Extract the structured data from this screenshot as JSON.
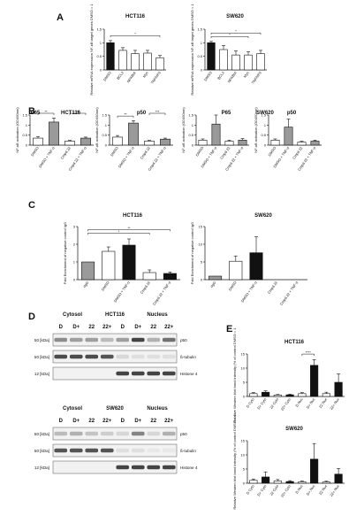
{
  "panel_labels": [
    "A",
    "B",
    "C",
    "D",
    "E"
  ],
  "colors": {
    "black": "#111111",
    "white": "#ffffff",
    "gray": "#9a9a9a",
    "band": "#3a3a3a"
  },
  "chart_data": [
    {
      "id": "A1",
      "type": "bar",
      "panel": "A",
      "title": "HCT116",
      "ylabel": "Relative mRNA expression NF-ĸB target genes DMSO = 1",
      "ylim": [
        0,
        1.5
      ],
      "yticks": [
        0.0,
        0.5,
        1.0,
        1.5
      ],
      "categories": [
        "DMSO",
        "BCL3",
        "NFKBIA",
        "Myc",
        "TNFAIP3"
      ],
      "values": [
        1.0,
        0.72,
        0.6,
        0.62,
        0.45
      ],
      "errors": [
        0.08,
        0.1,
        0.12,
        0.1,
        0.08
      ],
      "fills": [
        "black",
        "white",
        "white",
        "white",
        "white"
      ],
      "annotations": [
        "*"
      ]
    },
    {
      "id": "A2",
      "type": "bar",
      "panel": "A",
      "title": "SW620",
      "ylabel": "Relative mRNA expression NF-ĸB target genes DMSO = 1",
      "ylim": [
        0,
        1.5
      ],
      "yticks": [
        0.0,
        0.5,
        1.0,
        1.5
      ],
      "categories": [
        "DMSO",
        "BCL3",
        "NFKBIA",
        "Myc",
        "TNFAIP3"
      ],
      "values": [
        1.0,
        0.75,
        0.55,
        0.55,
        0.6
      ],
      "errors": [
        0.05,
        0.15,
        0.15,
        0.12,
        0.12
      ],
      "fills": [
        "black",
        "white",
        "white",
        "white",
        "white"
      ],
      "annotations": [
        "*",
        "*"
      ]
    },
    {
      "id": "B1",
      "type": "bar",
      "panel": "B",
      "title": "P65",
      "group_title": "HCT116",
      "ylabel": "NF-ĸB activation (OD450nm)",
      "ylim": [
        0,
        1.5
      ],
      "yticks": [
        0.0,
        0.5,
        1.0,
        1.5
      ],
      "categories": [
        "DMSO",
        "DMSO + TNF-α",
        "Cmpd 22",
        "Cmpd 22 + TNF-α"
      ],
      "values": [
        0.35,
        1.15,
        0.2,
        0.35
      ],
      "errors": [
        0.08,
        0.2,
        0.04,
        0.05
      ],
      "fills": [
        "white",
        "gray",
        "white",
        "gray"
      ],
      "annotations": [
        "**",
        "**"
      ]
    },
    {
      "id": "B2",
      "type": "bar",
      "panel": "B",
      "title": "p50",
      "group_title": "HCT116",
      "ylabel": "NF-ĸB activation (OD450nm)",
      "ylim": [
        0,
        1.5
      ],
      "yticks": [
        0.0,
        0.5,
        1.0,
        1.5
      ],
      "categories": [
        "DMSO",
        "DMSO + TNF-α",
        "Cmpd 22",
        "Cmpd 22 + TNF-α"
      ],
      "values": [
        0.4,
        1.1,
        0.2,
        0.3
      ],
      "errors": [
        0.08,
        0.12,
        0.04,
        0.05
      ],
      "fills": [
        "white",
        "gray",
        "white",
        "gray"
      ],
      "annotations": [
        "**",
        "***"
      ]
    },
    {
      "id": "B3",
      "type": "bar",
      "panel": "B",
      "title": "P65",
      "group_title": "SW620",
      "ylabel": "NF-ĸB activation (OD450nm)",
      "ylim": [
        0,
        1.5
      ],
      "yticks": [
        0.0,
        0.5,
        1.0,
        1.5
      ],
      "categories": [
        "DMSO",
        "DMSO + TNF-α",
        "Cmpd 22",
        "Cmpd 22 + TNF-α"
      ],
      "values": [
        0.25,
        1.05,
        0.2,
        0.25
      ],
      "errors": [
        0.06,
        0.45,
        0.05,
        0.08
      ],
      "fills": [
        "white",
        "gray",
        "white",
        "gray"
      ],
      "annotations": []
    },
    {
      "id": "B4",
      "type": "bar",
      "panel": "B",
      "title": "p50",
      "group_title": "SW620",
      "ylabel": "NF-ĸB activation (OD450nm)",
      "ylim": [
        0,
        1.5
      ],
      "yticks": [
        0.0,
        0.5,
        1.0,
        1.5
      ],
      "categories": [
        "DMSO",
        "DMSO + TNF-α",
        "Cmpd 22",
        "Cmpd 22 + TNF-α"
      ],
      "values": [
        0.25,
        0.9,
        0.15,
        0.2
      ],
      "errors": [
        0.06,
        0.4,
        0.04,
        0.05
      ],
      "fills": [
        "white",
        "gray",
        "white",
        "gray"
      ],
      "annotations": []
    },
    {
      "id": "C1",
      "type": "bar",
      "panel": "C",
      "title": "HCT116",
      "ylabel": "Fold Enrichment of negative control IgG",
      "ylim": [
        0,
        3
      ],
      "yticks": [
        0,
        1,
        2,
        3
      ],
      "categories": [
        "rIgG",
        "DMSO",
        "DMSO + TNF-α",
        "Cmpd 22",
        "Cmpd 22 + TNF-α"
      ],
      "values": [
        1.0,
        1.6,
        1.95,
        0.4,
        0.35
      ],
      "errors": [
        0,
        0.25,
        0.35,
        0.15,
        0.08
      ],
      "fills": [
        "gray",
        "white",
        "black",
        "white",
        "black"
      ],
      "annotations": [
        "*",
        "**"
      ]
    },
    {
      "id": "C2",
      "type": "bar",
      "panel": "C",
      "title": "SW620",
      "ylabel": "Fold Enrichment of negative control IgG",
      "ylim": [
        0,
        15
      ],
      "yticks": [
        0,
        5,
        10,
        15
      ],
      "categories": [
        "rIgG",
        "DMSO",
        "DMSO + TNF-α",
        "Cmpd 22",
        "Cmpd 22 + TNF-α"
      ],
      "values": [
        1.0,
        5.2,
        7.6,
        0,
        0
      ],
      "errors": [
        0,
        1.5,
        4.5,
        0,
        0
      ],
      "fills": [
        "gray",
        "white",
        "black",
        "white",
        "black"
      ],
      "annotations": []
    },
    {
      "id": "E1",
      "type": "bar",
      "panel": "E",
      "title": "HCT116",
      "ylabel": "Relative Western blot band intensity (% of control DMSO = 1",
      "ylim": [
        0,
        15
      ],
      "yticks": [
        0,
        5,
        10,
        15
      ],
      "categories": [
        "D Cyto",
        "D+ Cyto",
        "22 Cyto",
        "22+ Cyto",
        "D Nuc",
        "D+ Nuc",
        "22 Nuc",
        "22+ Nuc"
      ],
      "values": [
        1.0,
        1.5,
        0.5,
        0.6,
        1.0,
        11.0,
        1.0,
        5.0
      ],
      "errors": [
        0.4,
        0.5,
        0.2,
        0.2,
        0.4,
        2.0,
        0.5,
        3.0
      ],
      "fills": [
        "white",
        "black",
        "white",
        "black",
        "white",
        "black",
        "white",
        "black"
      ],
      "annotations": [
        "****"
      ]
    },
    {
      "id": "E2",
      "type": "bar",
      "panel": "E",
      "title": "SW620",
      "ylabel": "Relative Western blot band intensity (% of control DMSO = 1",
      "ylim": [
        0,
        15
      ],
      "yticks": [
        0,
        5,
        10,
        15
      ],
      "categories": [
        "D Cyto",
        "D+ Cyto",
        "22 Cyto",
        "22+ Cyto",
        "D Nuc",
        "D+ Nuc",
        "22 Nuc",
        "22+ Nuc"
      ],
      "values": [
        1.0,
        2.2,
        0.8,
        0.6,
        0.5,
        8.5,
        0.4,
        3.2
      ],
      "errors": [
        0.5,
        1.8,
        0.5,
        0.3,
        0.3,
        5.5,
        0.3,
        2.0
      ],
      "fills": [
        "white",
        "black",
        "white",
        "black",
        "white",
        "black",
        "white",
        "black"
      ],
      "annotations": []
    }
  ],
  "blots": [
    {
      "id": "D1",
      "cell_line": "HCT116",
      "section_left": "Cytosol",
      "section_right": "Nucleus",
      "lanes": [
        "D",
        "D+",
        "22",
        "22+",
        "D",
        "D+",
        "22",
        "22+"
      ],
      "rows": [
        {
          "size": "50 [kDa]",
          "protein": "p50",
          "intensities": [
            0.55,
            0.45,
            0.45,
            0.3,
            0.45,
            0.95,
            0.35,
            0.7
          ]
        },
        {
          "size": "50 [kDa]",
          "protein": "ß-tubulin",
          "intensities": [
            0.9,
            0.9,
            0.9,
            0.85,
            0.15,
            0.1,
            0.1,
            0.1
          ]
        },
        {
          "size": "12 [kDa]",
          "protein": "Histone 4",
          "intensities": [
            0,
            0,
            0,
            0,
            0.95,
            0.95,
            0.95,
            0.95
          ]
        }
      ]
    },
    {
      "id": "D2",
      "cell_line": "SW620",
      "section_left": "Cytosol",
      "section_right": "Nucleus",
      "lanes": [
        "D",
        "D+",
        "22",
        "22+",
        "D",
        "D+",
        "22",
        "22+"
      ],
      "rows": [
        {
          "size": "50 [kDa]",
          "protein": "p50",
          "intensities": [
            0.3,
            0.35,
            0.25,
            0.2,
            0.15,
            0.6,
            0.15,
            0.35
          ]
        },
        {
          "size": "50 [kDa]",
          "protein": "ß-tubulin",
          "intensities": [
            0.85,
            0.85,
            0.85,
            0.85,
            0.1,
            0.1,
            0.05,
            0.05
          ]
        },
        {
          "size": "12 [kDa]",
          "protein": "Histone 4",
          "intensities": [
            0,
            0,
            0,
            0,
            0.95,
            0.95,
            0.95,
            0.95
          ]
        }
      ]
    }
  ]
}
